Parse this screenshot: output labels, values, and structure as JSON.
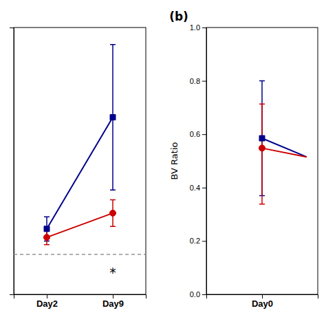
{
  "chart_data": [
    {
      "type": "line",
      "categories": [
        "Day2",
        "Day9"
      ],
      "series": [
        {
          "color": "#00008B",
          "marker": "square",
          "values": [
            0.22,
            0.68
          ],
          "yerr": [
            0.05,
            0.3
          ]
        },
        {
          "color": "#CC0000",
          "marker": "circle",
          "values": [
            0.185,
            0.285
          ],
          "yerr": [
            0.03,
            0.055
          ]
        }
      ],
      "reference_line": {
        "value": 0.115,
        "line_style": "dashed"
      },
      "annotations": [
        {
          "text": "*",
          "x": "Day9",
          "y": 0.04
        }
      ],
      "ylim": [
        -0.05,
        1.05
      ],
      "tick_labels": "x",
      "grid": false
    },
    {
      "type": "line",
      "title": "(b)",
      "ylabel": "BV Ratio",
      "categories": [
        "Day0"
      ],
      "series": [
        {
          "color": "#00008B",
          "marker": "square",
          "values": [
            0.585
          ],
          "yerr_lo": [
            0.215
          ],
          "yerr_hi": [
            0.215
          ],
          "end_value": 0.515
        },
        {
          "color": "#CC0000",
          "marker": "circle",
          "values": [
            0.548
          ],
          "yerr_lo": [
            0.21
          ],
          "yerr_hi": [
            0.165
          ],
          "end_value": 0.515
        }
      ],
      "ylim": [
        0,
        1
      ],
      "yticks": [
        {
          "value": 0,
          "label": "0.0"
        },
        0.2,
        0.4,
        0.6,
        0.8,
        {
          "value": 1.0,
          "label": "1.0"
        }
      ],
      "grid": false
    }
  ]
}
